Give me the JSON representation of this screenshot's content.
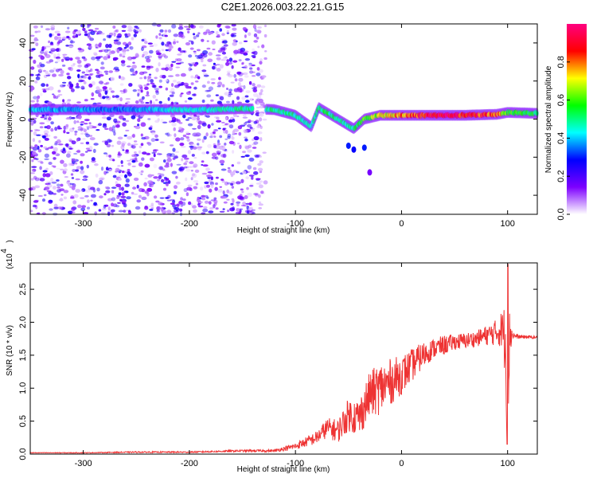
{
  "title": "C2E1.2026.003.22.21.G15",
  "chart_data": [
    {
      "type": "heatmap",
      "xlabel": "Height of straight line (km)",
      "ylabel": "Frequency (Hz)",
      "xlim": [
        -350,
        128
      ],
      "ylim": [
        -50,
        50
      ],
      "xticks": [
        -300,
        -200,
        -100,
        0,
        100
      ],
      "yticks": [
        -40,
        -20,
        0,
        20,
        40
      ],
      "colorbar": {
        "label": "Normalized spectral amplitude",
        "range": [
          0,
          1
        ],
        "ticks": [
          0.0,
          0.2,
          0.4,
          0.6,
          0.8
        ],
        "tick_labels": [
          "0.0",
          "0.2",
          "0.4",
          "0.6",
          "0.8"
        ],
        "colormap": [
          "#ffffff",
          "#7d00ff",
          "#0000ff",
          "#00ffff",
          "#00ff00",
          "#ffff00",
          "#ff0000",
          "#ff0080"
        ]
      },
      "noise_region": {
        "x": [
          -350,
          -128
        ],
        "y": [
          -50,
          50
        ],
        "level": 0.25
      },
      "ridge": [
        {
          "x": -350,
          "y": 5.0,
          "v": 0.4
        },
        {
          "x": -300,
          "y": 5.0,
          "v": 0.38
        },
        {
          "x": -270,
          "y": 5.0,
          "v": 0.35
        },
        {
          "x": -210,
          "y": 5.0,
          "v": 0.45
        },
        {
          "x": -180,
          "y": 5.0,
          "v": 0.45
        },
        {
          "x": -150,
          "y": 5.5,
          "v": 0.5
        },
        {
          "x": -120,
          "y": 5.0,
          "v": 0.5
        },
        {
          "x": -100,
          "y": 2.0,
          "v": 0.5
        },
        {
          "x": -85,
          "y": -4.0,
          "v": 0.45
        },
        {
          "x": -78,
          "y": 6.0,
          "v": 0.55
        },
        {
          "x": -60,
          "y": 0.0,
          "v": 0.5
        },
        {
          "x": -45,
          "y": -5.0,
          "v": 0.5
        },
        {
          "x": -35,
          "y": 0.0,
          "v": 0.6
        },
        {
          "x": -20,
          "y": 2.0,
          "v": 0.7
        },
        {
          "x": 0,
          "y": 2.0,
          "v": 0.8
        },
        {
          "x": 30,
          "y": 2.0,
          "v": 0.95
        },
        {
          "x": 60,
          "y": 2.0,
          "v": 0.9
        },
        {
          "x": 90,
          "y": 2.5,
          "v": 0.85
        },
        {
          "x": 100,
          "y": 3.5,
          "v": 0.6
        },
        {
          "x": 128,
          "y": 3.0,
          "v": 0.55
        }
      ]
    },
    {
      "type": "line",
      "xlabel": "Height of straight line (km)",
      "ylabel": "SNR (10 * v/v)",
      "yscale_label": "(x10^4)",
      "xlim": [
        -350,
        128
      ],
      "ylim": [
        0,
        2.9
      ],
      "xticks": [
        -300,
        -200,
        -100,
        0,
        100
      ],
      "yticks": [
        0.0,
        0.5,
        1.0,
        1.5,
        2.0,
        2.5
      ],
      "ytick_labels": [
        "0.0",
        "0.5",
        "1.0",
        "1.5",
        "2.0",
        "2.5"
      ],
      "color": "#ee3333",
      "series": [
        {
          "x": [
            -350,
            -300,
            -250,
            -200,
            -150,
            -120,
            -100,
            -80,
            -70,
            -60,
            -50,
            -40,
            -30,
            -20,
            -10,
            0,
            10,
            20,
            30,
            40,
            50,
            60,
            70,
            80,
            90,
            95,
            98,
            100,
            102,
            105,
            110,
            128
          ],
          "y": [
            0.02,
            0.02,
            0.03,
            0.03,
            0.05,
            0.05,
            0.12,
            0.25,
            0.4,
            0.35,
            0.6,
            0.55,
            0.9,
            1.0,
            1.1,
            1.2,
            1.35,
            1.5,
            1.6,
            1.65,
            1.7,
            1.72,
            1.75,
            1.8,
            1.85,
            1.9,
            1.7,
            0.7,
            1.85,
            1.8,
            1.78,
            1.77
          ],
          "noise": [
            0.005,
            0.005,
            0.01,
            0.01,
            0.015,
            0.02,
            0.05,
            0.1,
            0.15,
            0.18,
            0.25,
            0.3,
            0.35,
            0.4,
            0.35,
            0.3,
            0.25,
            0.2,
            0.15,
            0.15,
            0.12,
            0.12,
            0.12,
            0.15,
            0.2,
            0.3,
            0.6,
            0.8,
            0.4,
            0.05,
            0.03,
            0.02
          ]
        }
      ]
    }
  ]
}
